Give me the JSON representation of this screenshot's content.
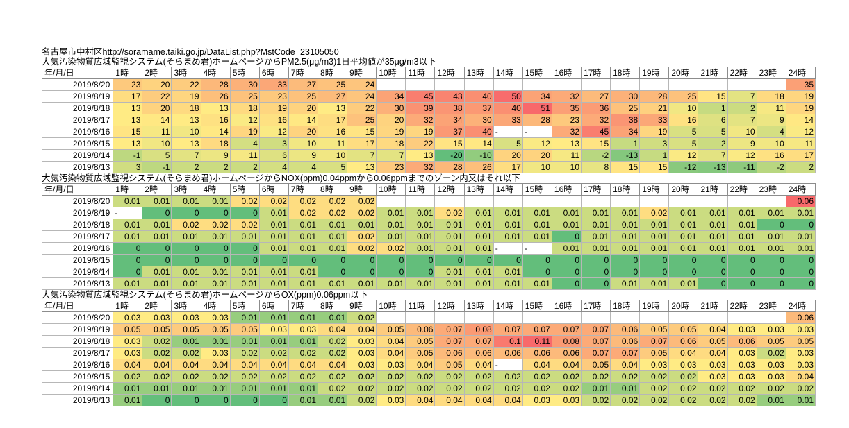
{
  "header": {
    "location": "名古屋市中村区",
    "url": "http://soramame.taiki.go.jp/DataList.php?MstCode=23105050"
  },
  "colors": {
    "low": "#63be7b",
    "mid": "#ffeb84",
    "high": "#f8696b",
    "empty": "#ffffff"
  },
  "sections": [
    {
      "id": "pm25",
      "title": "大気汚染物質広域監視システム(そらまめ君)ホームページからPM2.5(μg/m3)1日平均値が35μg/m3以下",
      "date_header": "年/月/日",
      "hours": [
        "1時",
        "2時",
        "3時",
        "4時",
        "5時",
        "6時",
        "7時",
        "8時",
        "9時",
        "10時",
        "11時",
        "12時",
        "13時",
        "14時",
        "15時",
        "16時",
        "17時",
        "18時",
        "19時",
        "20時",
        "21時",
        "22時",
        "23時",
        "24時"
      ],
      "scale": [
        -20,
        13,
        51
      ],
      "rows": [
        {
          "date": "2019/8/20",
          "values": [
            "23",
            "20",
            "22",
            "28",
            "30",
            "33",
            "27",
            "25",
            "24",
            "",
            "",
            "",
            "",
            "",
            "",
            "",
            "",
            "",
            "",
            "",
            "",
            "",
            "",
            "35"
          ]
        },
        {
          "date": "2019/8/19",
          "values": [
            "17",
            "22",
            "19",
            "26",
            "25",
            "23",
            "25",
            "27",
            "24",
            "34",
            "45",
            "43",
            "40",
            "50",
            "34",
            "32",
            "27",
            "30",
            "28",
            "25",
            "15",
            "7",
            "18",
            "19"
          ]
        },
        {
          "date": "2019/8/18",
          "values": [
            "13",
            "20",
            "18",
            "13",
            "18",
            "19",
            "20",
            "13",
            "22",
            "30",
            "39",
            "38",
            "37",
            "40",
            "51",
            "35",
            "36",
            "25",
            "21",
            "10",
            "1",
            "2",
            "11",
            "19"
          ]
        },
        {
          "date": "2019/8/17",
          "values": [
            "13",
            "14",
            "13",
            "16",
            "12",
            "16",
            "14",
            "17",
            "25",
            "20",
            "32",
            "34",
            "30",
            "33",
            "28",
            "23",
            "32",
            "38",
            "33",
            "16",
            "6",
            "7",
            "9",
            "14"
          ]
        },
        {
          "date": "2019/8/16",
          "values": [
            "15",
            "11",
            "10",
            "14",
            "19",
            "12",
            "20",
            "16",
            "15",
            "19",
            "19",
            "37",
            "40",
            "-",
            "-",
            "32",
            "45",
            "34",
            "19",
            "5",
            "5",
            "10",
            "4",
            "12"
          ]
        },
        {
          "date": "2019/8/15",
          "values": [
            "13",
            "10",
            "13",
            "18",
            "4",
            "3",
            "10",
            "11",
            "17",
            "18",
            "22",
            "15",
            "14",
            "5",
            "12",
            "13",
            "15",
            "1",
            "3",
            "5",
            "2",
            "9",
            "10",
            "11"
          ]
        },
        {
          "date": "2019/8/14",
          "values": [
            "-1",
            "5",
            "7",
            "9",
            "11",
            "6",
            "9",
            "10",
            "7",
            "7",
            "13",
            "-20",
            "-10",
            "20",
            "20",
            "11",
            "-2",
            "-13",
            "1",
            "12",
            "7",
            "12",
            "16",
            "17"
          ]
        },
        {
          "date": "2019/8/13",
          "values": [
            "3",
            "-1",
            "2",
            "2",
            "2",
            "4",
            "4",
            "5",
            "13",
            "23",
            "32",
            "28",
            "26",
            "17",
            "10",
            "10",
            "8",
            "15",
            "15",
            "-12",
            "-13",
            "-11",
            "-2",
            "2"
          ]
        }
      ]
    },
    {
      "id": "nox",
      "title": "大気汚染物質広域監視システム(そらまめ君)ホームページからNOX(ppm)0.04ppmから0.06ppmまでのゾーン内又はそれ以下",
      "date_header": "年/月/日",
      "hours": [
        "1時",
        "2時",
        "3時",
        "4時",
        "5時",
        "6時",
        "7時",
        "8時",
        "9時",
        "10時",
        "11時",
        "12時",
        "13時",
        "14時",
        "15時",
        "16時",
        "17時",
        "18時",
        "19時",
        "20時",
        "21時",
        "22時",
        "23時",
        "24時"
      ],
      "scale": [
        0,
        0.015,
        0.06
      ],
      "rows": [
        {
          "date": "2019/8/20",
          "values": [
            "0.01",
            "0.01",
            "0.01",
            "0.01",
            "0.02",
            "0.02",
            "0.02",
            "0.02",
            "0.02",
            "",
            "",
            "",
            "",
            "",
            "",
            "",
            "",
            "",
            "",
            "",
            "",
            "",
            "",
            "0.06"
          ]
        },
        {
          "date": "2019/8/19",
          "values": [
            "-",
            "0",
            "0",
            "0",
            "0",
            "0.01",
            "0.02",
            "0.02",
            "0.02",
            "0.01",
            "0.01",
            "0.02",
            "0.01",
            "0.01",
            "0.01",
            "0.01",
            "0.01",
            "0.01",
            "0.02",
            "0.01",
            "0.01",
            "0.01",
            "0.01",
            "0.01"
          ]
        },
        {
          "date": "2019/8/18",
          "values": [
            "0.01",
            "0.01",
            "0.02",
            "0.02",
            "0.02",
            "0.01",
            "0.01",
            "0.01",
            "0.01",
            "0.01",
            "0.01",
            "0.01",
            "0.01",
            "0.01",
            "0.01",
            "0.01",
            "0.01",
            "0.01",
            "0.01",
            "0.01",
            "0.01",
            "0.01",
            "0",
            "0"
          ]
        },
        {
          "date": "2019/8/17",
          "values": [
            "0.01",
            "0.01",
            "0.01",
            "0.01",
            "0.01",
            "0.01",
            "0.01",
            "0.01",
            "0.02",
            "0.01",
            "0.01",
            "0.01",
            "0.01",
            "0.01",
            "0.01",
            "0",
            "0.01",
            "0.01",
            "0.01",
            "0.01",
            "0.01",
            "0.01",
            "0.01",
            "0.01"
          ]
        },
        {
          "date": "2019/8/16",
          "values": [
            "0",
            "0",
            "0",
            "0",
            "0",
            "0.01",
            "0.01",
            "0.01",
            "0.02",
            "0.02",
            "0.01",
            "0.01",
            "0.01",
            "-",
            "-",
            "0.01",
            "0.01",
            "0.01",
            "0.01",
            "0.01",
            "0.01",
            "0.01",
            "0.01",
            "0.01"
          ]
        },
        {
          "date": "2019/8/15",
          "values": [
            "0",
            "0",
            "0",
            "0",
            "0",
            "0",
            "0",
            "0",
            "0",
            "0",
            "0",
            "0",
            "0",
            "0",
            "0",
            "0",
            "0",
            "0",
            "0",
            "0",
            "0",
            "0",
            "0",
            "0"
          ]
        },
        {
          "date": "2019/8/14",
          "values": [
            "0",
            "0.01",
            "0.01",
            "0.01",
            "0.01",
            "0.01",
            "0.01",
            "0",
            "0",
            "0",
            "0",
            "0.01",
            "0.01",
            "0.01",
            "0",
            "0",
            "0",
            "0",
            "0",
            "0",
            "0",
            "0",
            "0",
            "0"
          ]
        },
        {
          "date": "2019/8/13",
          "values": [
            "0.01",
            "0.01",
            "0.01",
            "0.01",
            "0.01",
            "0.01",
            "0.01",
            "0.01",
            "0.01",
            "0.01",
            "0.01",
            "0.01",
            "0.01",
            "0.01",
            "0.01",
            "0",
            "0",
            "0.01",
            "0.01",
            "0.01",
            "0",
            "0",
            "0",
            "0"
          ]
        }
      ]
    },
    {
      "id": "ox",
      "title": "大気汚染物質広域監視システム(そらまめ君)ホームページからOX(ppm)0.06ppm以下",
      "date_header": "年/月/日",
      "hours": [
        "1時",
        "2時",
        "3時",
        "4時",
        "5時",
        "6時",
        "7時",
        "8時",
        "9時",
        "10時",
        "11時",
        "12時",
        "13時",
        "14時",
        "15時",
        "16時",
        "17時",
        "18時",
        "19時",
        "20時",
        "21時",
        "22時",
        "23時",
        "24時"
      ],
      "scale": [
        0,
        0.03,
        0.11
      ],
      "rows": [
        {
          "date": "2019/8/20",
          "values": [
            "0.03",
            "0.03",
            "0.03",
            "0.03",
            "0.01",
            "0.01",
            "0.01",
            "0.01",
            "0.02",
            "",
            "",
            "",
            "",
            "",
            "",
            "",
            "",
            "",
            "",
            "",
            "",
            "",
            "",
            "0.06"
          ]
        },
        {
          "date": "2019/8/19",
          "values": [
            "0.05",
            "0.05",
            "0.05",
            "0.05",
            "0.05",
            "0.03",
            "0.03",
            "0.04",
            "0.04",
            "0.05",
            "0.06",
            "0.07",
            "0.08",
            "0.07",
            "0.07",
            "0.07",
            "0.07",
            "0.06",
            "0.05",
            "0.05",
            "0.04",
            "0.03",
            "0.03",
            "0.03"
          ]
        },
        {
          "date": "2019/8/18",
          "values": [
            "0.03",
            "0.02",
            "0.01",
            "0.01",
            "0.01",
            "0.01",
            "0.01",
            "0.02",
            "0.03",
            "0.04",
            "0.05",
            "0.07",
            "0.07",
            "0.1",
            "0.11",
            "0.08",
            "0.07",
            "0.06",
            "0.07",
            "0.06",
            "0.05",
            "0.06",
            "0.05",
            "0.05"
          ]
        },
        {
          "date": "2019/8/17",
          "values": [
            "0.03",
            "0.02",
            "0.02",
            "0.03",
            "0.02",
            "0.02",
            "0.02",
            "0.02",
            "0.03",
            "0.04",
            "0.05",
            "0.06",
            "0.06",
            "0.06",
            "0.06",
            "0.06",
            "0.07",
            "0.07",
            "0.05",
            "0.04",
            "0.04",
            "0.03",
            "0.02",
            "0.03"
          ]
        },
        {
          "date": "2019/8/16",
          "values": [
            "0.04",
            "0.04",
            "0.04",
            "0.04",
            "0.04",
            "0.04",
            "0.04",
            "0.04",
            "0.03",
            "0.03",
            "0.04",
            "0.05",
            "0.04",
            "-",
            "0.04",
            "0.04",
            "0.05",
            "0.04",
            "0.03",
            "0.03",
            "0.03",
            "0.03",
            "0.03",
            "0.03"
          ]
        },
        {
          "date": "2019/8/15",
          "values": [
            "0.02",
            "0.02",
            "0.02",
            "0.02",
            "0.02",
            "0.02",
            "0.02",
            "0.02",
            "0.02",
            "0.02",
            "0.02",
            "0.02",
            "0.02",
            "0.02",
            "0.02",
            "0.02",
            "0.02",
            "0.02",
            "0.02",
            "0.02",
            "0.03",
            "0.03",
            "0.03",
            "0.04"
          ]
        },
        {
          "date": "2019/8/14",
          "values": [
            "0.01",
            "0.01",
            "0.01",
            "0.01",
            "0.01",
            "0.01",
            "0.01",
            "0.02",
            "0.02",
            "0.02",
            "0.02",
            "0.02",
            "0.02",
            "0.02",
            "0.02",
            "0.02",
            "0.01",
            "0.01",
            "0.02",
            "0.02",
            "0.02",
            "0.02",
            "0.02",
            "0.02"
          ]
        },
        {
          "date": "2019/8/13",
          "values": [
            "0.01",
            "0",
            "0",
            "0",
            "0",
            "0",
            "0.01",
            "0.01",
            "0.02",
            "0.03",
            "0.04",
            "0.04",
            "0.04",
            "0.04",
            "0.03",
            "0.03",
            "0.02",
            "0.02",
            "0.02",
            "0.02",
            "0.02",
            "0.02",
            "0.01",
            "0.01"
          ]
        }
      ]
    }
  ]
}
